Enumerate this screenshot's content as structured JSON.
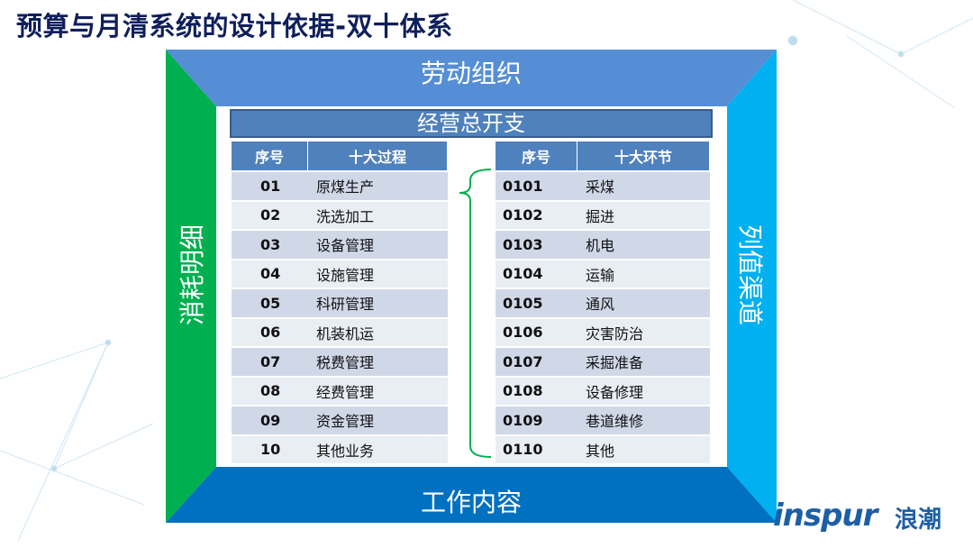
{
  "title": "预算与月清系统的设计依据-双十体系",
  "frame": {
    "top": "劳动组织",
    "bottom": "工作内容",
    "left": "消耗明细",
    "right": "列值渠道",
    "banner": "经营总开支",
    "colors": {
      "top": "#558ed5",
      "left": "#00b050",
      "right": "#00b0f0",
      "bottom": "#0070c0"
    }
  },
  "left_table": {
    "headers": [
      "序号",
      "十大过程"
    ],
    "rows": [
      [
        "01",
        "原煤生产"
      ],
      [
        "02",
        "洗选加工"
      ],
      [
        "03",
        "设备管理"
      ],
      [
        "04",
        "设施管理"
      ],
      [
        "05",
        "科研管理"
      ],
      [
        "06",
        "机装机运"
      ],
      [
        "07",
        "税费管理"
      ],
      [
        "08",
        "经费管理"
      ],
      [
        "09",
        "资金管理"
      ],
      [
        "10",
        "其他业务"
      ]
    ]
  },
  "right_table": {
    "headers": [
      "序号",
      "十大环节"
    ],
    "rows": [
      [
        "0101",
        "采煤"
      ],
      [
        "0102",
        "掘进"
      ],
      [
        "0103",
        "机电"
      ],
      [
        "0104",
        "运输"
      ],
      [
        "0105",
        "通风"
      ],
      [
        "0106",
        "灾害防治"
      ],
      [
        "0107",
        "采掘准备"
      ],
      [
        "0108",
        "设备修理"
      ],
      [
        "0109",
        "巷道维修"
      ],
      [
        "0110",
        "其他"
      ]
    ]
  },
  "logo": {
    "text": "inspur",
    "cn": "浪潮"
  }
}
